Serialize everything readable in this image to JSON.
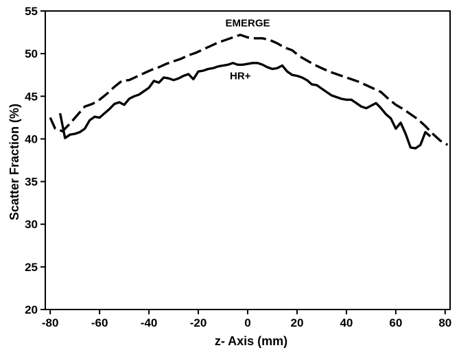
{
  "chart_data": {
    "type": "line",
    "xlabel": "z- Axis (mm)",
    "ylabel": "Scatter Fraction (%)",
    "xlim": [
      -82,
      82
    ],
    "ylim": [
      20,
      55
    ],
    "xticks": [
      -80,
      -60,
      -40,
      -20,
      0,
      20,
      40,
      60,
      80
    ],
    "yticks": [
      20,
      25,
      30,
      35,
      40,
      45,
      50,
      55
    ],
    "grid": false,
    "series": [
      {
        "name": "EMERGE",
        "line_style": "dashed",
        "color": "#000000",
        "x": [
          -80,
          -78,
          -75,
          -72,
          -69,
          -66,
          -63,
          -60,
          -57,
          -54,
          -51,
          -48,
          -45,
          -42,
          -39,
          -36,
          -33,
          -30,
          -27,
          -24,
          -21,
          -18,
          -15,
          -12,
          -9,
          -6,
          -3,
          0,
          3,
          6,
          9,
          12,
          15,
          18,
          21,
          24,
          27,
          30,
          33,
          36,
          39,
          42,
          45,
          48,
          51,
          54,
          57,
          60,
          63,
          66,
          69,
          72,
          75,
          78,
          81
        ],
        "values": [
          42.5,
          41.2,
          40.9,
          41.8,
          42.8,
          43.8,
          44.1,
          44.6,
          45.3,
          46.1,
          46.8,
          46.9,
          47.3,
          47.7,
          48.1,
          48.4,
          48.8,
          49.1,
          49.4,
          49.8,
          50.1,
          50.5,
          50.9,
          51.3,
          51.6,
          51.9,
          52.2,
          51.9,
          51.8,
          51.8,
          51.6,
          51.2,
          50.7,
          50.4,
          49.7,
          49.2,
          48.7,
          48.3,
          47.9,
          47.6,
          47.3,
          47.0,
          46.7,
          46.3,
          45.9,
          45.5,
          44.7,
          44.0,
          43.5,
          42.9,
          42.3,
          41.5,
          40.6,
          39.8,
          39.3
        ]
      },
      {
        "name": "HR+",
        "line_style": "solid",
        "color": "#000000",
        "x": [
          -76,
          -74,
          -72,
          -70,
          -68,
          -66,
          -64,
          -62,
          -60,
          -58,
          -56,
          -54,
          -52,
          -50,
          -48,
          -46,
          -44,
          -42,
          -40,
          -38,
          -36,
          -34,
          -32,
          -30,
          -28,
          -26,
          -24,
          -22,
          -20,
          -18,
          -16,
          -14,
          -12,
          -10,
          -8,
          -6,
          -4,
          -2,
          0,
          2,
          4,
          6,
          8,
          10,
          12,
          14,
          16,
          18,
          20,
          22,
          24,
          26,
          28,
          30,
          32,
          34,
          36,
          38,
          40,
          42,
          44,
          46,
          48,
          50,
          52,
          54,
          56,
          58,
          60,
          62,
          64,
          66,
          68,
          70,
          72,
          74
        ],
        "values": [
          43.0,
          40.1,
          40.5,
          40.6,
          40.8,
          41.2,
          42.2,
          42.6,
          42.5,
          43.0,
          43.5,
          44.1,
          44.3,
          44.0,
          44.7,
          45.0,
          45.2,
          45.6,
          46.0,
          46.8,
          46.6,
          47.2,
          47.1,
          46.9,
          47.1,
          47.4,
          47.6,
          47.0,
          47.9,
          48.0,
          48.2,
          48.3,
          48.5,
          48.6,
          48.7,
          48.9,
          48.7,
          48.7,
          48.8,
          48.9,
          48.9,
          48.7,
          48.4,
          48.2,
          48.3,
          48.6,
          47.9,
          47.5,
          47.4,
          47.2,
          46.9,
          46.4,
          46.3,
          45.9,
          45.5,
          45.1,
          44.9,
          44.7,
          44.6,
          44.6,
          44.2,
          43.8,
          43.6,
          43.9,
          44.2,
          43.6,
          42.9,
          42.4,
          41.2,
          41.9,
          40.6,
          39.0,
          38.9,
          39.3,
          40.8,
          40.3
        ]
      }
    ],
    "annotations": [
      {
        "text": "EMERGE",
        "x": 0,
        "y": 53.2
      },
      {
        "text": "HR+",
        "x": -3,
        "y": 47.0
      }
    ]
  }
}
